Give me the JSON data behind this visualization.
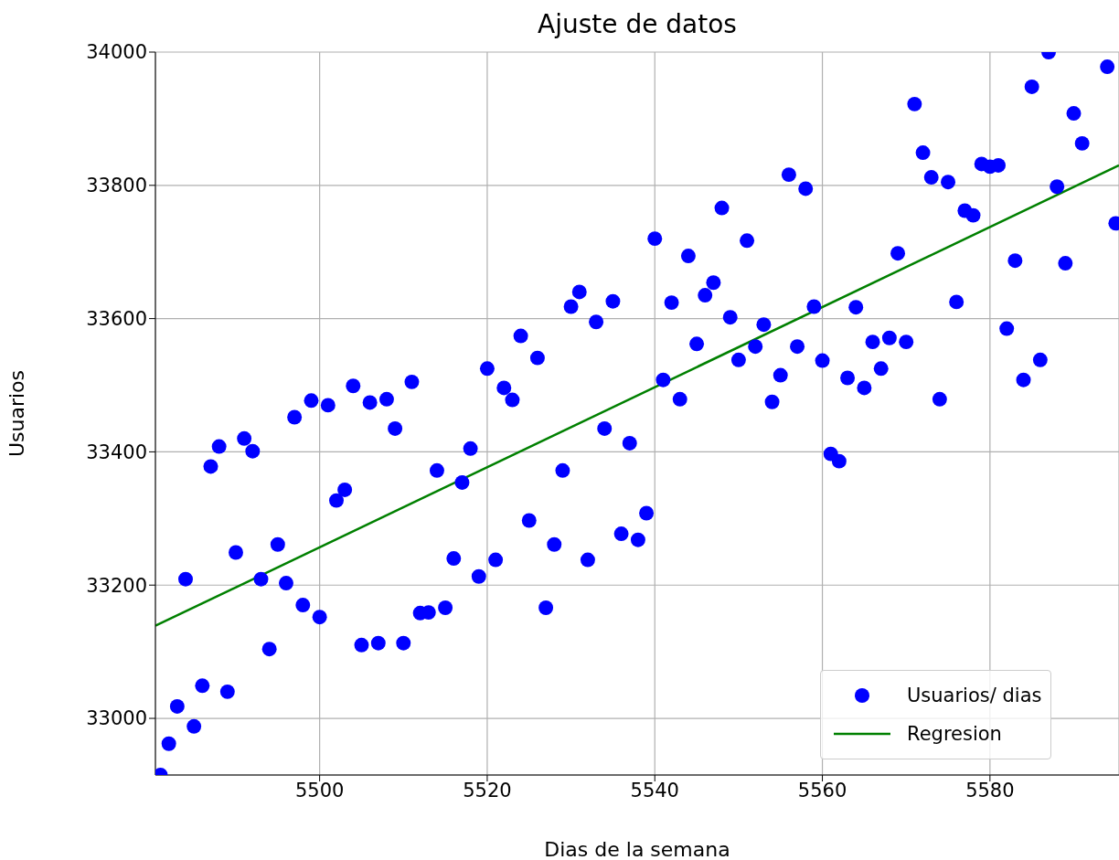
{
  "chart_data": {
    "type": "scatter",
    "title": "Ajuste de datos",
    "xlabel": "Dias de la semana",
    "ylabel": "Usuarios",
    "xlim": [
      5480.4,
      5595.4
    ],
    "ylim": [
      32915,
      34000
    ],
    "xticks": [
      5500,
      5520,
      5540,
      5560,
      5580
    ],
    "yticks": [
      33000,
      33200,
      33400,
      33600,
      33800,
      34000
    ],
    "grid": true,
    "legend": "bottom right",
    "series": [
      {
        "name": "Usuarios/ dias",
        "marker": "circle",
        "color": "#0000ff",
        "x": [
          5481,
          5482,
          5483,
          5484,
          5485,
          5486,
          5487,
          5488,
          5489,
          5490,
          5491,
          5492,
          5493,
          5494,
          5495,
          5496,
          5497,
          5498,
          5499,
          5500,
          5501,
          5502,
          5503,
          5504,
          5505,
          5506,
          5507,
          5508,
          5509,
          5510,
          5511,
          5512,
          5513,
          5514,
          5515,
          5516,
          5517,
          5518,
          5519,
          5520,
          5521,
          5522,
          5523,
          5524,
          5525,
          5526,
          5527,
          5528,
          5529,
          5530,
          5531,
          5532,
          5533,
          5534,
          5535,
          5536,
          5537,
          5538,
          5539,
          5540,
          5541,
          5542,
          5543,
          5544,
          5545,
          5546,
          5547,
          5548,
          5549,
          5550,
          5551,
          5552,
          5553,
          5554,
          5555,
          5556,
          5557,
          5558,
          5559,
          5560,
          5561,
          5562,
          5563,
          5564,
          5565,
          5566,
          5567,
          5568,
          5569,
          5570,
          5571,
          5572,
          5573,
          5574,
          5575,
          5576,
          5577,
          5578,
          5579,
          5580,
          5581,
          5582,
          5583,
          5584,
          5585,
          5586,
          5587,
          5588,
          5589,
          5590,
          5591,
          5594,
          5595
        ],
        "values": [
          32915,
          32962,
          33018,
          33209,
          32988,
          33049,
          33378,
          33408,
          33040,
          33249,
          33420,
          33401,
          33209,
          33104,
          33261,
          33203,
          33452,
          33170,
          33477,
          33152,
          33470,
          33327,
          33343,
          33499,
          33110,
          33474,
          33113,
          33479,
          33435,
          33113,
          33505,
          33158,
          33159,
          33372,
          33166,
          33240,
          33354,
          33405,
          33213,
          33525,
          33238,
          33496,
          33478,
          33574,
          33297,
          33541,
          33166,
          33261,
          33372,
          33618,
          33640,
          33238,
          33595,
          33435,
          33626,
          33277,
          33413,
          33268,
          33308,
          33720,
          33508,
          33624,
          33479,
          33694,
          33562,
          33635,
          33654,
          33766,
          33602,
          33538,
          33717,
          33558,
          33591,
          33475,
          33515,
          33816,
          33558,
          33795,
          33618,
          33537,
          33397,
          33386,
          33511,
          33617,
          33496,
          33565,
          33525,
          33571,
          33698,
          33565,
          33922,
          33849,
          33812,
          33479,
          33805,
          33625,
          33762,
          33755,
          33832,
          33828,
          33830,
          33585,
          33687,
          33508,
          33948,
          33538,
          34000,
          33798,
          33683,
          33908,
          33863,
          33978,
          33743
        ]
      },
      {
        "name": "Regresion",
        "type": "line",
        "line_style": "solid",
        "color": "#008000",
        "x": [
          5480.4,
          5595.4
        ],
        "values": [
          33139,
          33830
        ]
      }
    ]
  }
}
